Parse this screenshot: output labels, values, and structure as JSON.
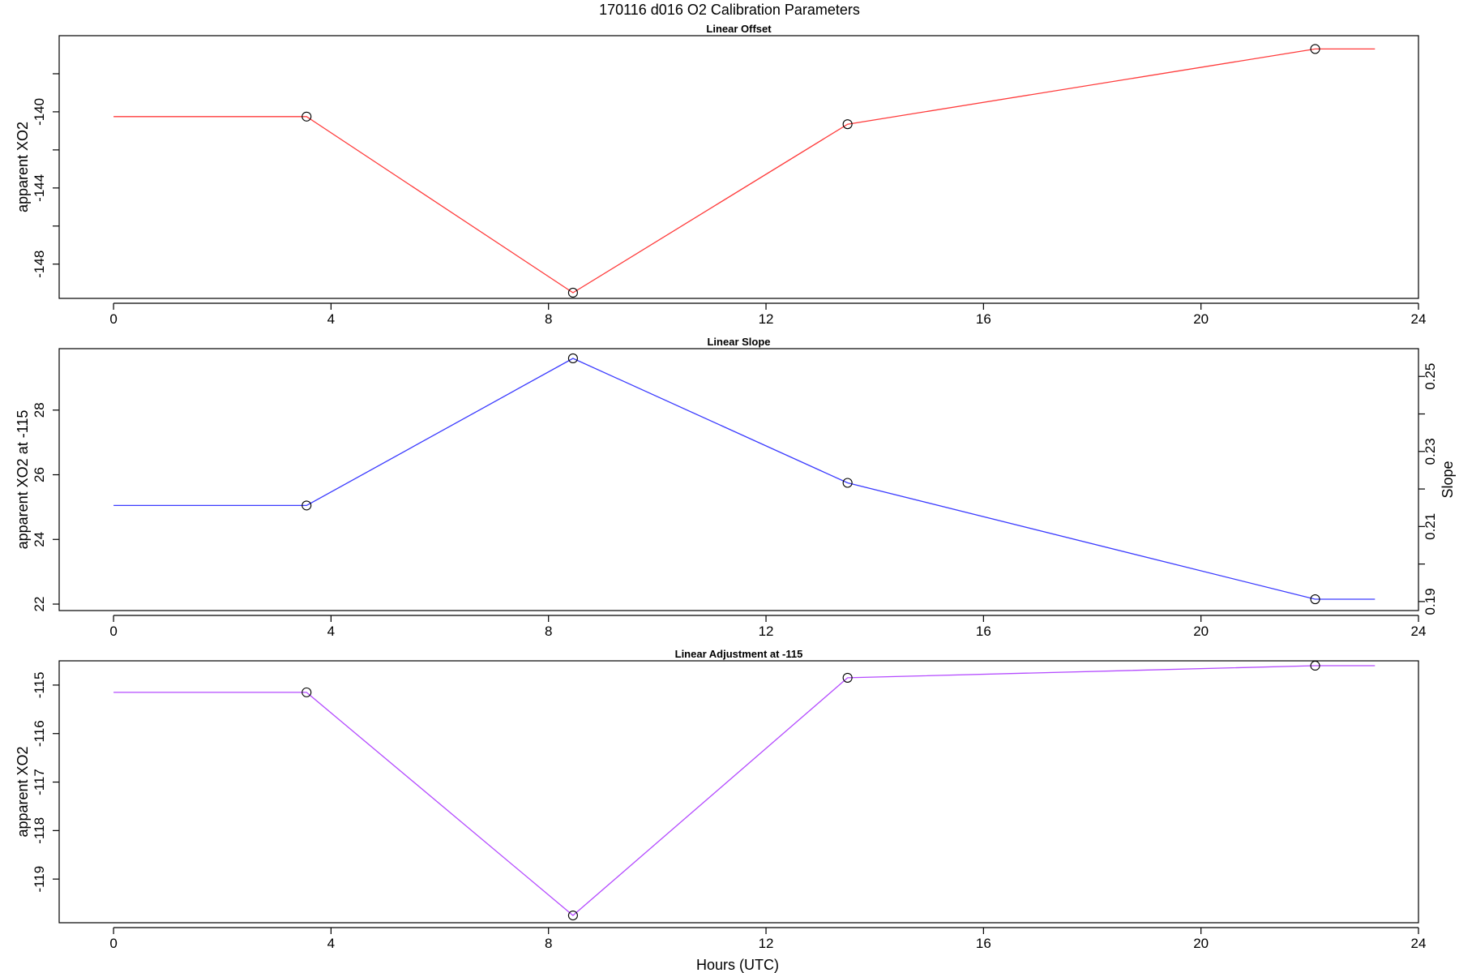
{
  "title": "170116   d016   O2 Calibration Parameters",
  "xlabel": "Hours (UTC)",
  "chart_data": [
    {
      "type": "line",
      "title": "Linear Offset",
      "xlabel": "",
      "ylabel": "apparent XO2",
      "color": "#ff3b3b",
      "xlim": [
        -1,
        24
      ],
      "ylim": [
        -149.8,
        -136.0
      ],
      "xticks": [
        0,
        4,
        8,
        12,
        16,
        20,
        24
      ],
      "yticks": [
        -140,
        -144,
        -148
      ],
      "yminor": [
        -138,
        -142,
        -146
      ],
      "x": [
        0.0,
        3.55,
        8.45,
        13.5,
        22.1,
        23.2
      ],
      "y": [
        -140.25,
        -140.25,
        -149.5,
        -140.65,
        -136.7,
        -136.7
      ],
      "markers_x": [
        3.55,
        8.45,
        13.5,
        22.1
      ],
      "markers_y": [
        -140.25,
        -149.5,
        -140.65,
        -136.7
      ]
    },
    {
      "type": "line",
      "title": "Linear Slope",
      "xlabel": "",
      "ylabel": "apparent XO2 at -115",
      "ylabel_right": "Slope",
      "color": "#3b3bff",
      "xlim": [
        -1,
        24
      ],
      "ylim": [
        21.8,
        29.9
      ],
      "xticks": [
        0,
        4,
        8,
        12,
        16,
        20,
        24
      ],
      "yticks": [
        22,
        24,
        26,
        28
      ],
      "y2lim": [
        0.1876,
        0.2574
      ],
      "y2ticks": [
        0.19,
        0.21,
        0.23,
        0.25
      ],
      "y2minor": [
        0.2,
        0.22,
        0.24
      ],
      "x": [
        0.0,
        3.55,
        8.45,
        13.5,
        22.1,
        23.2
      ],
      "y": [
        25.05,
        25.05,
        29.6,
        25.75,
        22.15,
        22.15
      ],
      "markers_x": [
        3.55,
        8.45,
        13.5,
        22.1
      ],
      "markers_y": [
        25.05,
        29.6,
        25.75,
        22.15
      ]
    },
    {
      "type": "line",
      "title": "Linear Adjustment at -115",
      "xlabel": "Hours (UTC)",
      "ylabel": "apparent XO2",
      "color": "#b44bff",
      "xlim": [
        -1,
        24
      ],
      "ylim": [
        -119.9,
        -114.5
      ],
      "xticks": [
        0,
        4,
        8,
        12,
        16,
        20,
        24
      ],
      "yticks": [
        -115,
        -116,
        -117,
        -118,
        -119
      ],
      "x": [
        0.0,
        3.55,
        8.45,
        13.5,
        22.1,
        23.2
      ],
      "y": [
        -115.15,
        -115.15,
        -119.75,
        -114.85,
        -114.6,
        -114.6
      ],
      "markers_x": [
        3.55,
        8.45,
        13.5,
        22.1
      ],
      "markers_y": [
        -115.15,
        -119.75,
        -114.85,
        -114.6
      ]
    }
  ]
}
